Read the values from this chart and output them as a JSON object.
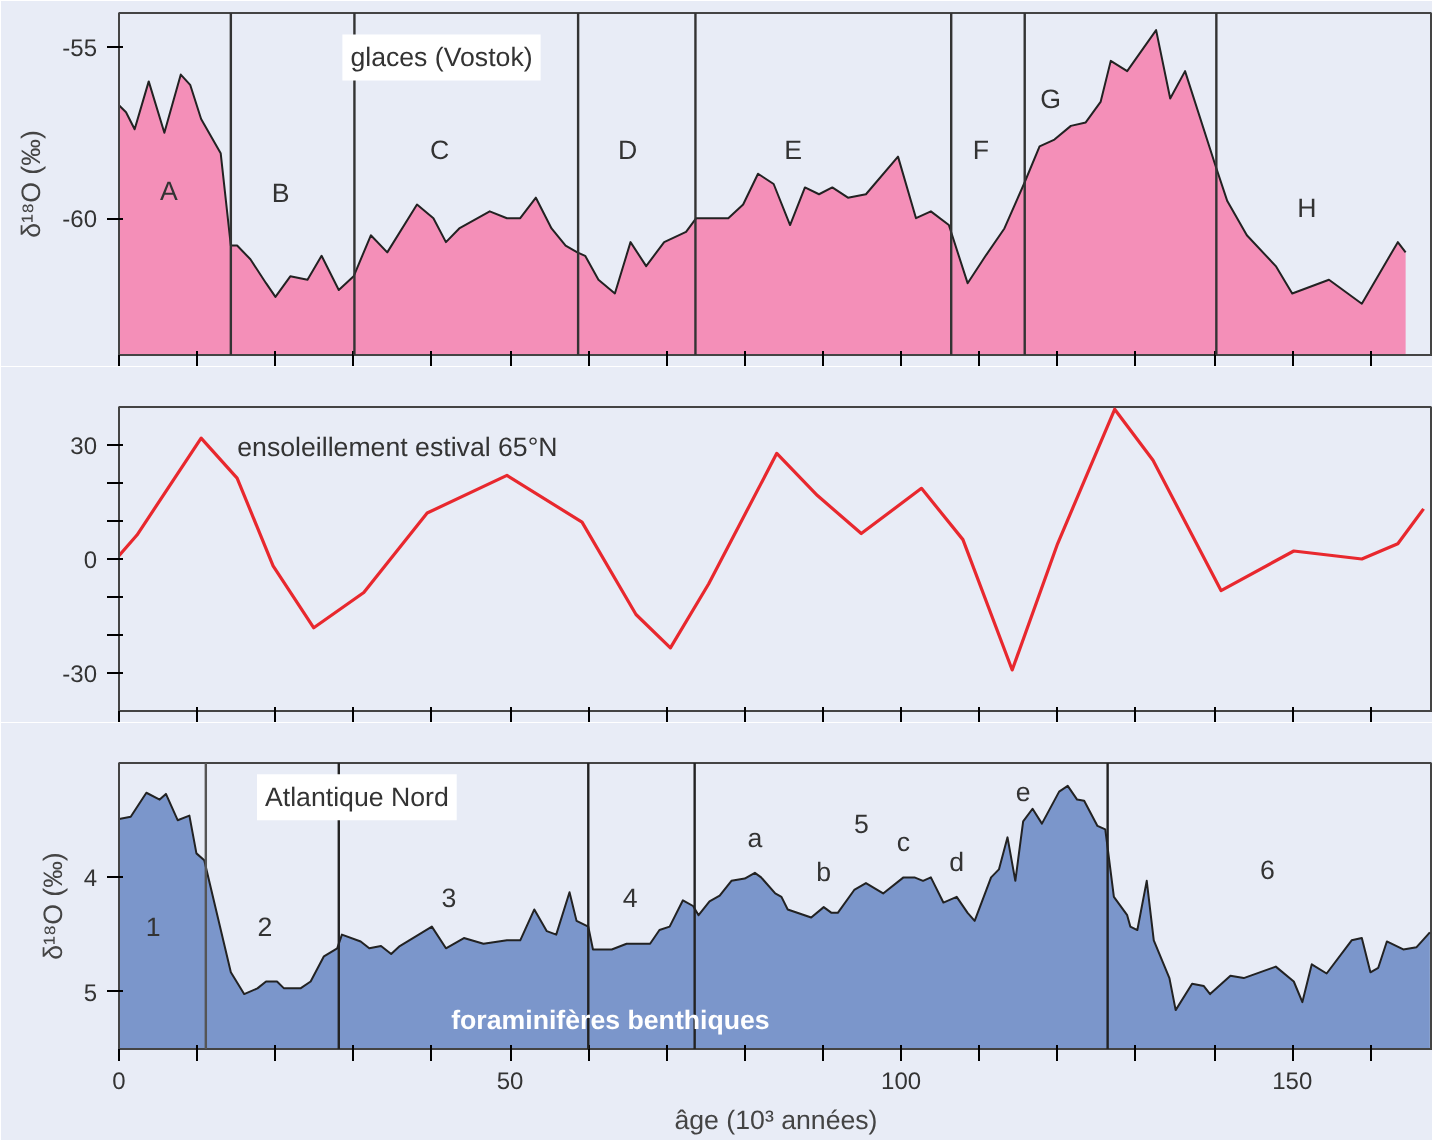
{
  "chart_data": [
    {
      "type": "area",
      "title": "glaces (Vostok)",
      "ylabel": "δ¹⁸O (‰)",
      "tick_labels": "y",
      "x": [
        0.0,
        0.9,
        2.0,
        3.8,
        5.8,
        7.9,
        9.1,
        10.5,
        13.0,
        14.3,
        15.1,
        16.8,
        18.8,
        20.0,
        21.9,
        24.1,
        25.9,
        28.1,
        30.0,
        32.2,
        34.3,
        38.1,
        40.2,
        41.8,
        43.5,
        47.4,
        49.6,
        51.3,
        53.3,
        55.3,
        57.1,
        58.6,
        59.6,
        61.3,
        63.4,
        65.4,
        67.4,
        69.7,
        72.5,
        73.8,
        76.8,
        77.9,
        79.8,
        81.7,
        83.7,
        85.8,
        87.7,
        89.5,
        91.2,
        93.2,
        95.5,
        99.6,
        101.9,
        103.8,
        106.1,
        108.5,
        110.8,
        113.2,
        115.7,
        117.7,
        119.6,
        121.7,
        123.6,
        125.5,
        126.8,
        128.9,
        132.6,
        134.4,
        136.3,
        140.1,
        141.7,
        144.2,
        147.9,
        150.0,
        154.7,
        158.9,
        163.5,
        164.5
      ],
      "series": [
        {
          "color": "#f48fb8",
          "values": [
            -56.7,
            -56.9,
            -57.4,
            -56.0,
            -57.5,
            -55.8,
            -56.1,
            -57.1,
            -58.1,
            -60.8,
            -60.8,
            -61.2,
            -61.9,
            -62.3,
            -61.7,
            -61.8,
            -61.1,
            -62.1,
            -61.7,
            -60.5,
            -61.0,
            -59.6,
            -60.0,
            -60.7,
            -60.3,
            -59.8,
            -60.0,
            -60.0,
            -59.4,
            -60.3,
            -60.8,
            -61.0,
            -61.1,
            -61.8,
            -62.2,
            -60.7,
            -61.4,
            -60.7,
            -60.4,
            -60.0,
            -60.0,
            -60.0,
            -59.6,
            -58.7,
            -59.0,
            -60.2,
            -59.1,
            -59.3,
            -59.1,
            -59.4,
            -59.3,
            -58.2,
            -60.0,
            -59.8,
            -60.2,
            -61.9,
            -61.1,
            -60.3,
            -59.0,
            -57.9,
            -57.7,
            -57.3,
            -57.2,
            -56.6,
            -55.4,
            -55.7,
            -54.5,
            -56.5,
            -55.7,
            -58.4,
            -59.5,
            -60.5,
            -61.4,
            -62.2,
            -61.8,
            -62.5,
            -60.7,
            -61.0
          ]
        }
      ],
      "xlim": [
        0,
        168
      ],
      "ylim": [
        -64,
        -54
      ],
      "yticks": [
        -55,
        -60
      ],
      "xticks": [
        0,
        {
          "value": 10,
          "label": null
        },
        {
          "value": 20,
          "label": null
        },
        {
          "value": 30,
          "label": null
        },
        {
          "value": 40,
          "label": null
        },
        50,
        {
          "value": 60,
          "label": null
        },
        {
          "value": 70,
          "label": null
        },
        {
          "value": 80,
          "label": null
        },
        {
          "value": 90,
          "label": null
        },
        100,
        {
          "value": 110,
          "label": null
        },
        {
          "value": 120,
          "label": null
        },
        {
          "value": 130,
          "label": null
        },
        {
          "value": 140,
          "label": null
        },
        150,
        {
          "value": 160,
          "label": null
        }
      ],
      "ref_lines": [
        {
          "axis": "x",
          "value": 14.3,
          "color": "#333333"
        },
        {
          "axis": "x",
          "value": 30.1,
          "color": "#333333"
        },
        {
          "axis": "x",
          "value": 58.7,
          "color": "#333333"
        },
        {
          "axis": "x",
          "value": 73.7,
          "color": "#333333"
        },
        {
          "axis": "x",
          "value": 106.4,
          "color": "#333333"
        },
        {
          "axis": "x",
          "value": 115.8,
          "color": "#333333"
        },
        {
          "axis": "x",
          "value": 140.3,
          "color": "#333333"
        }
      ],
      "annotations": [
        "A",
        "B",
        "C",
        "D",
        "E",
        "F",
        "G",
        "H"
      ]
    },
    {
      "type": "line",
      "title": "ensoleillement estival   65°N",
      "tick_labels": "y",
      "x": [
        0,
        2.3,
        10.5,
        15.1,
        19.7,
        24.9,
        31.3,
        39.4,
        49.6,
        59.2,
        66.1,
        70.5,
        75.4,
        84.1,
        89.3,
        94.9,
        102.6,
        107.9,
        114.2,
        120.0,
        127.3,
        132.2,
        140.9,
        150.2,
        158.9,
        163.5,
        166.8
      ],
      "series": [
        {
          "color": "#e8282e",
          "values": [
            0.9,
            6.3,
            31.8,
            21.3,
            -1.8,
            -18.1,
            -8.8,
            12.1,
            22.0,
            9.7,
            -14.6,
            -23.4,
            -6.5,
            27.8,
            16.7,
            6.7,
            18.6,
            5.1,
            -29.2,
            4.0,
            39.4,
            26.0,
            -8.3,
            2.1,
            0,
            4.0,
            13.2
          ]
        }
      ],
      "xlim": [
        0,
        168
      ],
      "ylim": [
        -40,
        40
      ],
      "yticks": [
        -30,
        {
          "value": -20,
          "label": null
        },
        {
          "value": -10,
          "label": null
        },
        0,
        {
          "value": 10,
          "label": null
        },
        {
          "value": 20,
          "label": null
        },
        30
      ],
      "xticks": [
        0,
        {
          "value": 10,
          "label": null
        },
        {
          "value": 20,
          "label": null
        },
        {
          "value": 30,
          "label": null
        },
        {
          "value": 40,
          "label": null
        },
        50,
        {
          "value": 60,
          "label": null
        },
        {
          "value": 70,
          "label": null
        },
        {
          "value": 80,
          "label": null
        },
        {
          "value": 90,
          "label": null
        },
        100,
        {
          "value": 110,
          "label": null
        },
        {
          "value": 120,
          "label": null
        },
        {
          "value": 130,
          "label": null
        },
        {
          "value": 140,
          "label": null
        },
        150,
        {
          "value": 160,
          "label": null
        }
      ]
    },
    {
      "type": "area",
      "title": "Atlantique Nord",
      "subtitle": "foraminifères benthiques",
      "ylabel": "δ¹⁸O (‰)",
      "xlabel": "âge (10³ années)",
      "x": [
        0,
        1.5,
        3.5,
        5.2,
        6.0,
        7.5,
        9.0,
        9.9,
        10.9,
        14.3,
        16.0,
        17.7,
        18.8,
        20.2,
        21.1,
        23.2,
        24.5,
        26.2,
        27.9,
        28.5,
        30.9,
        32.0,
        33.5,
        34.8,
        35.9,
        40.0,
        41.8,
        44.1,
        46.6,
        49.6,
        51.3,
        53.1,
        54.7,
        55.9,
        57.6,
        58.5,
        60.0,
        60.6,
        63.0,
        64.9,
        67.9,
        69.1,
        70.4,
        72.1,
        73.4,
        74.1,
        75.5,
        76.8,
        78.3,
        80.0,
        81.3,
        82.1,
        83.9,
        84.7,
        85.5,
        88.5,
        90.1,
        91.1,
        91.9,
        94.0,
        95.5,
        97.7,
        100.3,
        101.7,
        102.8,
        103.8,
        105.4,
        107.1,
        108.5,
        109.4,
        111.5,
        112.5,
        113.6,
        114.6,
        115.6,
        116.8,
        118.0,
        120.2,
        121.3,
        122.5,
        123.4,
        125.1,
        126.1,
        127.2,
        128.9,
        129.3,
        130.2,
        131.4,
        132.3,
        134.3,
        135.1,
        137.2,
        138.7,
        139.5,
        142.1,
        143.8,
        147.9,
        150.2,
        151.3,
        152.5,
        154.4,
        157.6,
        158.9,
        160.0,
        161.0,
        162.1,
        164.2,
        165.9,
        167.6
      ],
      "series": [
        {
          "color": "#7b96cb",
          "values": [
            3.49,
            3.47,
            3.26,
            3.32,
            3.27,
            3.5,
            3.46,
            3.79,
            3.85,
            4.83,
            5.02,
            4.97,
            4.91,
            4.91,
            4.97,
            4.97,
            4.91,
            4.69,
            4.62,
            4.5,
            4.56,
            4.62,
            4.6,
            4.67,
            4.6,
            4.43,
            4.62,
            4.53,
            4.58,
            4.55,
            4.55,
            4.28,
            4.47,
            4.5,
            4.13,
            4.38,
            4.43,
            4.63,
            4.63,
            4.58,
            4.58,
            4.46,
            4.43,
            4.2,
            4.25,
            4.33,
            4.21,
            4.16,
            4.03,
            4.01,
            3.96,
            4.0,
            4.14,
            4.17,
            4.28,
            4.35,
            4.26,
            4.31,
            4.31,
            4.11,
            4.05,
            4.14,
            4.0,
            4.0,
            4.03,
            4.0,
            4.22,
            4.17,
            4.31,
            4.38,
            4.0,
            3.93,
            3.65,
            4.03,
            3.51,
            3.4,
            3.53,
            3.25,
            3.2,
            3.32,
            3.33,
            3.55,
            3.58,
            4.17,
            4.33,
            4.43,
            4.46,
            4.03,
            4.55,
            4.88,
            5.16,
            4.93,
            4.95,
            5.02,
            4.86,
            4.88,
            4.78,
            4.91,
            5.09,
            4.76,
            4.84,
            4.55,
            4.53,
            4.83,
            4.79,
            4.56,
            4.63,
            4.61,
            4.48
          ]
        }
      ],
      "xlim": [
        0,
        168
      ],
      "ylim": [
        5.5,
        3
      ],
      "yticks": [
        4,
        5
      ],
      "xticks": [
        0,
        {
          "value": 10,
          "label": null
        },
        {
          "value": 20,
          "label": null
        },
        {
          "value": 30,
          "label": null
        },
        {
          "value": 40,
          "label": null
        },
        50,
        {
          "value": 60,
          "label": null
        },
        {
          "value": 70,
          "label": null
        },
        {
          "value": 80,
          "label": null
        },
        {
          "value": 90,
          "label": null
        },
        100,
        {
          "value": 110,
          "label": null
        },
        {
          "value": 120,
          "label": null
        },
        {
          "value": 130,
          "label": null
        },
        {
          "value": 140,
          "label": null
        },
        150,
        {
          "value": 160,
          "label": null
        }
      ],
      "ref_lines": [
        {
          "axis": "x",
          "value": 11.1,
          "color": "#555555"
        },
        {
          "axis": "x",
          "value": 28.1,
          "color": "#222222"
        },
        {
          "axis": "x",
          "value": 60.0,
          "color": "#222222"
        },
        {
          "axis": "x",
          "value": 73.6,
          "color": "#222222"
        },
        {
          "axis": "x",
          "value": 126.4,
          "color": "#222222"
        }
      ],
      "annotations": [
        "1",
        "2",
        "3",
        "4",
        "5",
        "6",
        {
          "text": "a",
          "x": 81.3,
          "y": 3.96
        },
        {
          "text": "b",
          "x": 90.1,
          "y": 4.26
        },
        {
          "text": "c",
          "x": 100.3,
          "y": 4.0
        },
        {
          "text": "d",
          "x": 107.1,
          "y": 4.17
        },
        {
          "text": "e",
          "x": 115.6,
          "y": 3.51
        }
      ]
    }
  ]
}
